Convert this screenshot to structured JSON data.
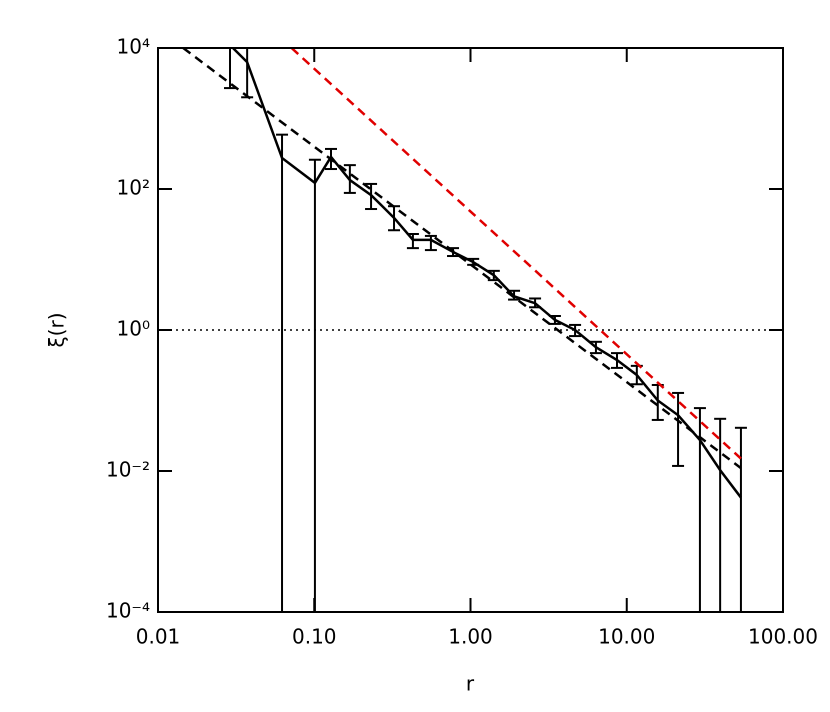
{
  "chart_data": {
    "type": "line",
    "xlabel": "r",
    "ylabel": "ξ(r)",
    "xlog": true,
    "ylog": true,
    "xlim": [
      0.01,
      100
    ],
    "ylim": [
      0.0001,
      10000
    ],
    "xticks": [
      {
        "value": 0.01,
        "label": "0.01"
      },
      {
        "value": 0.1,
        "label": "0.10"
      },
      {
        "value": 1,
        "label": "1.00"
      },
      {
        "value": 10,
        "label": "10.00"
      },
      {
        "value": 100,
        "label": "100.00"
      }
    ],
    "yticks": [
      {
        "value": 0.0001,
        "label": "10⁻⁴"
      },
      {
        "value": 0.01,
        "label": "10⁻²"
      },
      {
        "value": 1,
        "label": "10⁰"
      },
      {
        "value": 100,
        "label": "10²"
      },
      {
        "value": 10000,
        "label": "10⁴"
      }
    ],
    "reference_line": 1,
    "series": [
      {
        "style": "solid-errorbar",
        "color": "#000000",
        "x": [
          0.0289,
          0.0372,
          0.0622,
          0.101,
          0.128,
          0.169,
          0.231,
          0.324,
          0.428,
          0.558,
          0.773,
          1.04,
          1.41,
          1.9,
          2.59,
          3.47,
          4.67,
          6.35,
          8.66,
          11.6,
          15.8,
          21.3,
          29.4,
          39.6,
          53.8
        ],
        "values": [
          11000,
          6300,
          275,
          122,
          285,
          134,
          82,
          39,
          19,
          19,
          12.8,
          9.2,
          6.0,
          3.0,
          2.4,
          1.39,
          1.0,
          0.57,
          0.375,
          0.23,
          0.1,
          0.062,
          0.0275,
          0.0103,
          0.0042
        ],
        "lower": [
          2700,
          2000,
          0.0001,
          0.0001,
          192,
          88,
          52,
          26,
          14.5,
          13.6,
          11.2,
          8.4,
          5.1,
          2.7,
          2.1,
          1.22,
          0.82,
          0.47,
          0.29,
          0.17,
          0.053,
          0.0118,
          0.0001,
          0.0001,
          0.0001
        ],
        "upper": [
          20000,
          11000,
          590,
          260,
          370,
          218,
          118,
          57,
          23,
          21.6,
          14.5,
          10.2,
          6.9,
          3.6,
          2.8,
          1.58,
          1.18,
          0.68,
          0.47,
          0.31,
          0.166,
          0.128,
          0.078,
          0.055,
          0.041
        ]
      },
      {
        "style": "dashed",
        "color": "#000000",
        "x": [
          0.0145,
          53.8
        ],
        "values": [
          10000,
          0.011
        ]
      },
      {
        "style": "dashed",
        "color": "#e00000",
        "x": [
          0.0716,
          53.8
        ],
        "values": [
          10000,
          0.015
        ]
      }
    ]
  }
}
